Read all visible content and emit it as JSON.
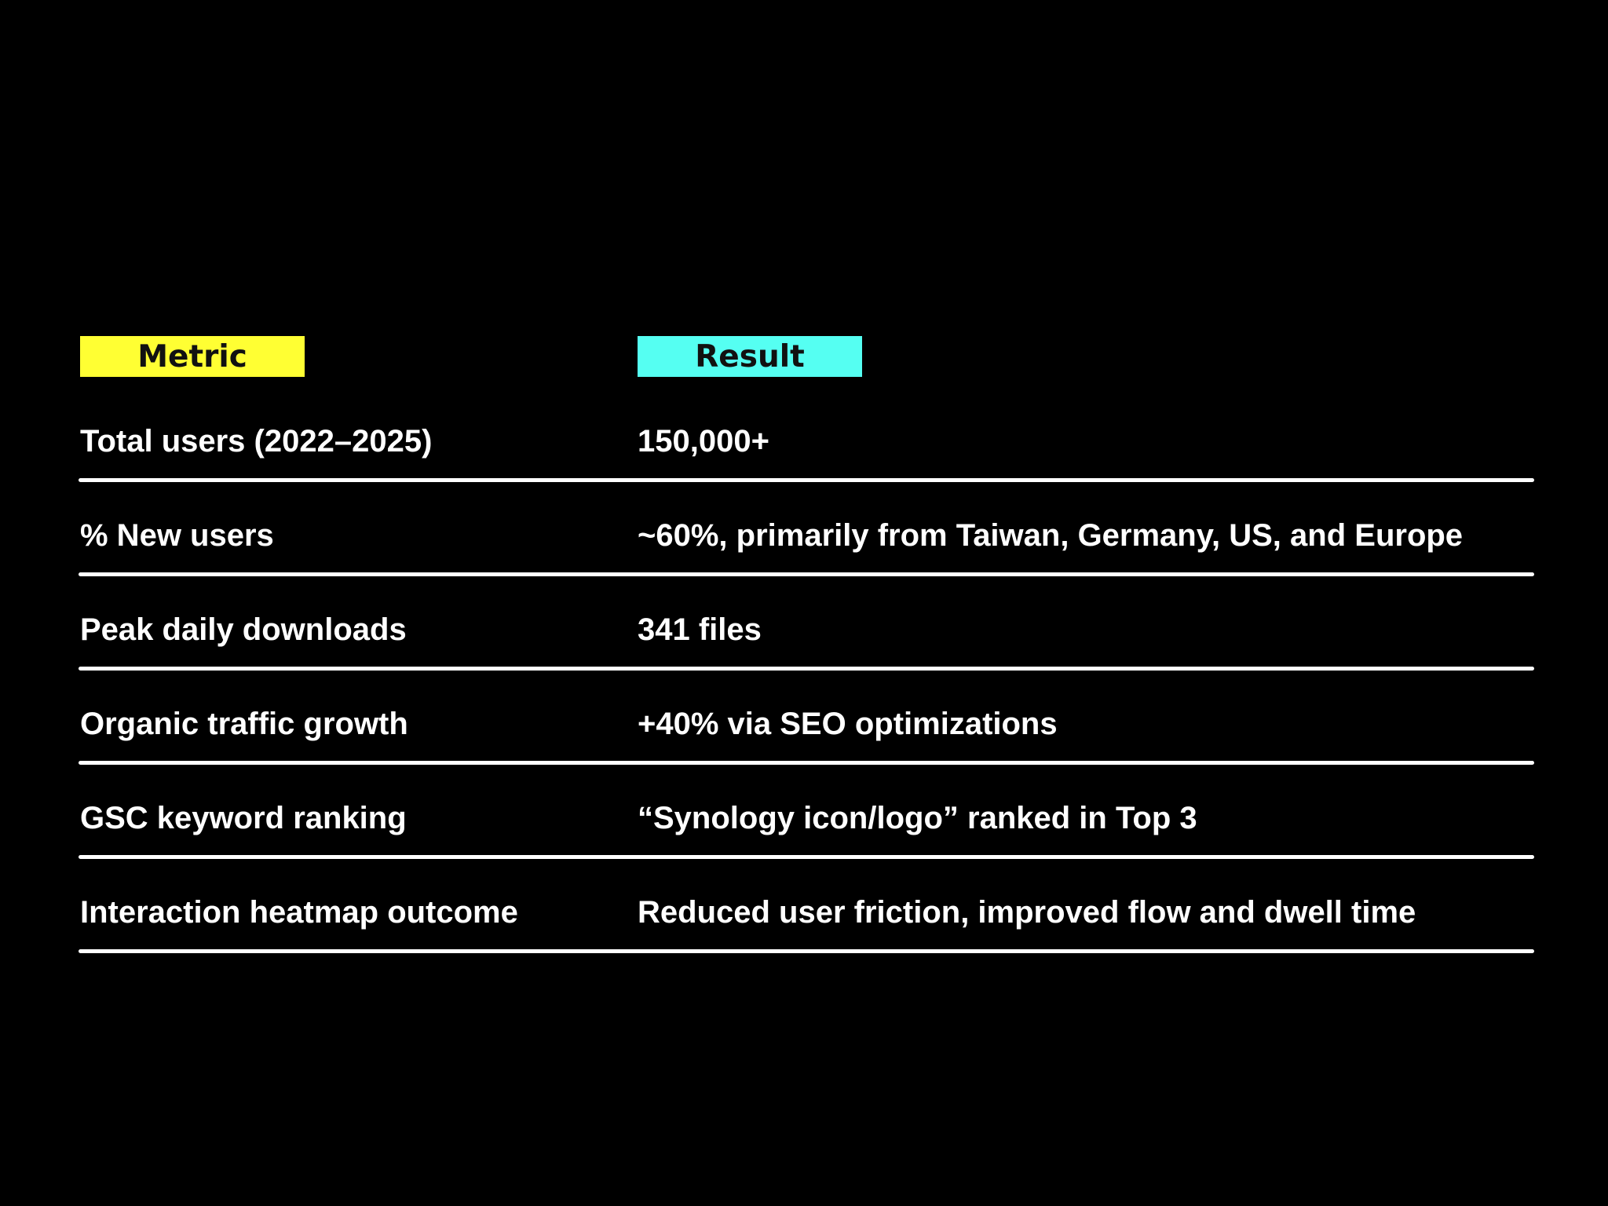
{
  "table": {
    "headers": {
      "metric": "Metric",
      "result": "Result"
    },
    "header_colors": {
      "metric": "#ffff33",
      "result": "#55fff2"
    },
    "rows": [
      {
        "metric": "Total users (2022–2025)",
        "result": "150,000+"
      },
      {
        "metric": "% New users",
        "result": "~60%, primarily from Taiwan, Germany, US, and Europe"
      },
      {
        "metric": "Peak daily downloads",
        "result": "341 files"
      },
      {
        "metric": "Organic traffic growth",
        "result": "+40% via SEO optimizations"
      },
      {
        "metric": "GSC keyword ranking",
        "result": "“Synology icon/logo” ranked in Top 3"
      },
      {
        "metric": "Interaction heatmap outcome",
        "result": "Reduced user friction, improved flow and dwell time"
      }
    ]
  }
}
